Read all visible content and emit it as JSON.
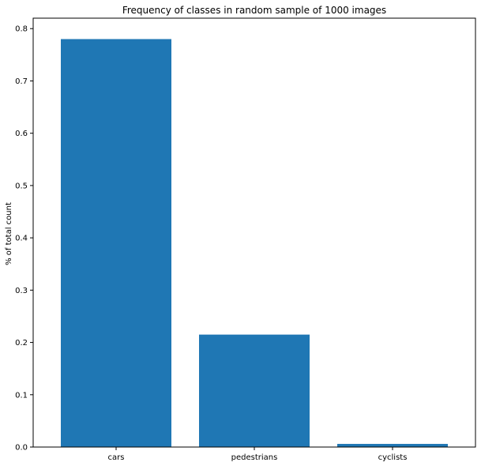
{
  "chart_data": {
    "type": "bar",
    "title": "Frequency of classes in random sample of 1000 images",
    "xlabel": "",
    "ylabel": "% of total count",
    "categories": [
      "cars",
      "pedestrians",
      "cyclists"
    ],
    "values": [
      0.78,
      0.215,
      0.006
    ],
    "ylim": [
      0,
      0.82
    ],
    "yticks": [
      "0.0",
      "0.1",
      "0.2",
      "0.3",
      "0.4",
      "0.5",
      "0.6",
      "0.7",
      "0.8"
    ],
    "bar_color": "#1f77b4",
    "grid": false,
    "legend": "none"
  }
}
